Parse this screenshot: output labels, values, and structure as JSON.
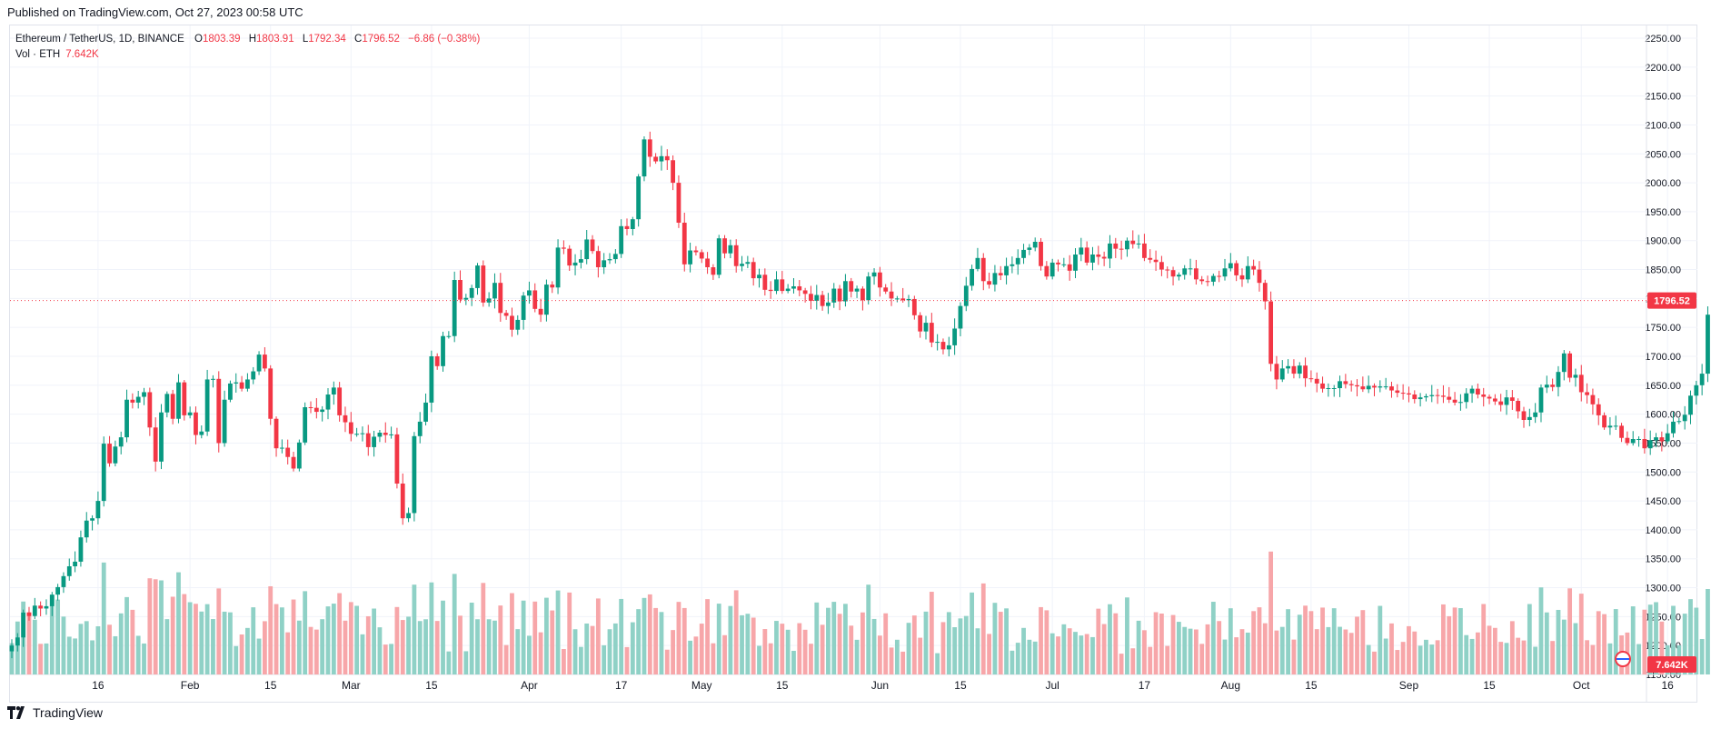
{
  "published": "Published on TradingView.com, Oct 27, 2023 00:58 UTC",
  "legend": {
    "symbol": "Ethereum / TetherUS, 1D, BINANCE",
    "o_label": "O",
    "o_value": "1803.39",
    "h_label": "H",
    "h_value": "1803.91",
    "l_label": "L",
    "l_value": "1792.34",
    "c_label": "C",
    "c_value": "1796.52",
    "change": "−6.86 (−0.38%)",
    "vol_label": "Vol · ETH",
    "vol_value": "7.642K"
  },
  "footer": {
    "brand": "TradingView",
    "logo_icon": "tradingview-logo-icon"
  },
  "colors": {
    "up": "#089981",
    "down": "#f23645",
    "up_vol": "#8fd1c6",
    "down_vol": "#f7a6a9",
    "grid": "#f0f3fa"
  },
  "chart_data": {
    "type": "candlestick",
    "title": "Ethereum / TetherUS, 1D, BINANCE",
    "ylim": [
      1150,
      2250
    ],
    "y_ticks": [
      "2250.00",
      "2200.00",
      "2150.00",
      "2100.00",
      "2050.00",
      "2000.00",
      "1950.00",
      "1900.00",
      "1850.00",
      "1800.00",
      "1750.00",
      "1700.00",
      "1650.00",
      "1600.00",
      "1550.00",
      "1500.00",
      "1450.00",
      "1400.00",
      "1350.00",
      "1300.00",
      "1250.00",
      "1200.00",
      "1150.00"
    ],
    "x_ticks": [
      {
        "label": "16",
        "date": "2023-01-16"
      },
      {
        "label": "Feb",
        "date": "2023-02-01"
      },
      {
        "label": "15",
        "date": "2023-02-15"
      },
      {
        "label": "Mar",
        "date": "2023-03-01"
      },
      {
        "label": "15",
        "date": "2023-03-15"
      },
      {
        "label": "Apr",
        "date": "2023-04-01"
      },
      {
        "label": "17",
        "date": "2023-04-17"
      },
      {
        "label": "May",
        "date": "2023-05-01"
      },
      {
        "label": "15",
        "date": "2023-05-15"
      },
      {
        "label": "Jun",
        "date": "2023-06-01"
      },
      {
        "label": "15",
        "date": "2023-06-15"
      },
      {
        "label": "Jul",
        "date": "2023-07-01"
      },
      {
        "label": "17",
        "date": "2023-07-17"
      },
      {
        "label": "Aug",
        "date": "2023-08-01"
      },
      {
        "label": "15",
        "date": "2023-08-15"
      },
      {
        "label": "Sep",
        "date": "2023-09-01"
      },
      {
        "label": "15",
        "date": "2023-09-15"
      },
      {
        "label": "Oct",
        "date": "2023-10-01"
      },
      {
        "label": "16",
        "date": "2023-10-16"
      }
    ],
    "last_price_label": "1796.52",
    "last_volume_label": "7.642K",
    "start_date": "2023-01-01",
    "closes": [
      1200,
      1214,
      1257,
      1251,
      1269,
      1264,
      1268,
      1288,
      1301,
      1320,
      1337,
      1345,
      1387,
      1416,
      1420,
      1450,
      1549,
      1515,
      1544,
      1560,
      1625,
      1620,
      1630,
      1638,
      1577,
      1518,
      1603,
      1635,
      1592,
      1655,
      1598,
      1603,
      1564,
      1570,
      1660,
      1661,
      1550,
      1625,
      1653,
      1655,
      1644,
      1660,
      1674,
      1703,
      1679,
      1592,
      1541,
      1542,
      1526,
      1506,
      1551,
      1612,
      1611,
      1604,
      1608,
      1634,
      1646,
      1598,
      1586,
      1566,
      1566,
      1567,
      1543,
      1561,
      1568,
      1564,
      1565,
      1480,
      1420,
      1429,
      1562,
      1587,
      1620,
      1700,
      1683,
      1735,
      1735,
      1832,
      1798,
      1801,
      1818,
      1857,
      1793,
      1800,
      1827,
      1775,
      1770,
      1746,
      1763,
      1805,
      1814,
      1782,
      1772,
      1824,
      1819,
      1888,
      1886,
      1857,
      1862,
      1868,
      1902,
      1882,
      1854,
      1866,
      1868,
      1877,
      1925,
      1920,
      1937,
      2011,
      2075,
      2045,
      2037,
      2046,
      2039,
      2000,
      1931,
      1859,
      1883,
      1880,
      1869,
      1854,
      1841,
      1904,
      1878,
      1892,
      1856,
      1860,
      1863,
      1835,
      1841,
      1815,
      1813,
      1833,
      1813,
      1817,
      1821,
      1814,
      1808,
      1796,
      1806,
      1787,
      1793,
      1817,
      1795,
      1830,
      1812,
      1817,
      1797,
      1838,
      1845,
      1819,
      1812,
      1800,
      1800,
      1797,
      1799,
      1771,
      1743,
      1758,
      1724,
      1725,
      1712,
      1719,
      1748,
      1787,
      1822,
      1851,
      1870,
      1830,
      1824,
      1844,
      1840,
      1856,
      1859,
      1870,
      1884,
      1888,
      1898,
      1856,
      1838,
      1862,
      1859,
      1859,
      1848,
      1876,
      1888,
      1862,
      1876,
      1872,
      1869,
      1895,
      1886,
      1885,
      1900,
      1894,
      1895,
      1870,
      1867,
      1863,
      1850,
      1849,
      1838,
      1841,
      1852,
      1852,
      1833,
      1830,
      1829,
      1839,
      1838,
      1852,
      1861,
      1840,
      1833,
      1856,
      1850,
      1827,
      1795,
      1687,
      1660,
      1679,
      1683,
      1670,
      1684,
      1662,
      1661,
      1653,
      1644,
      1645,
      1645,
      1657,
      1652,
      1650,
      1648,
      1643,
      1649,
      1646,
      1648,
      1648,
      1641,
      1637,
      1636,
      1634,
      1626,
      1629,
      1631,
      1633,
      1632,
      1630,
      1625,
      1620,
      1621,
      1636,
      1644,
      1634,
      1630,
      1627,
      1622,
      1616,
      1629,
      1623,
      1605,
      1590,
      1595,
      1603,
      1646,
      1651,
      1647,
      1673,
      1705,
      1663,
      1668,
      1638,
      1633,
      1617,
      1598,
      1577,
      1580,
      1580,
      1559,
      1550,
      1557,
      1557,
      1541,
      1555,
      1560,
      1553,
      1567,
      1587,
      1588,
      1599,
      1632,
      1650,
      1670,
      1772,
      1768,
      1796,
      1810,
      1806,
      1796.52
    ],
    "volume_note": "volume bars shown relative to the price axis baseline; values not labeled on axis"
  }
}
